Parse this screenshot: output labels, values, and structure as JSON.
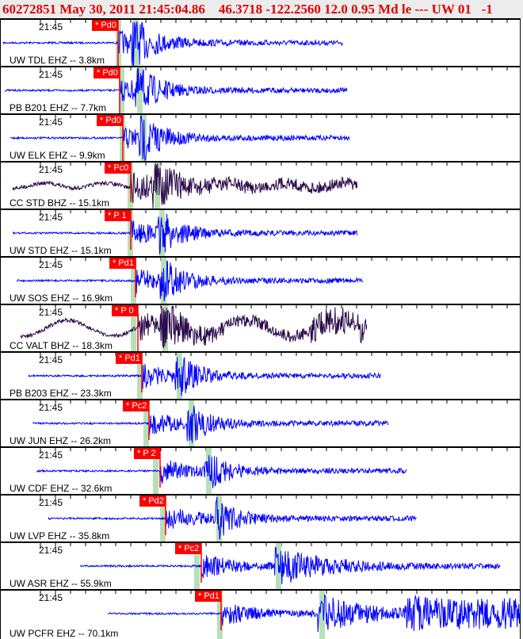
{
  "header": {
    "title": "60272851 May 30, 2011 21:45:04.86    46.3718 -122.2560 12.0 0.95 Md le --- UW 01   -1"
  },
  "colors": {
    "header_text": "#e00000",
    "trace_short_period": "#0000ff",
    "trace_broadband": "#2a0a4a",
    "pick": "#ff0000",
    "window": "#b8e0b8"
  },
  "time_label": "21:45",
  "traces": [
    {
      "station": "UW TDL EHZ -- 3.8km",
      "pick": "* Pd0",
      "type": "sp"
    },
    {
      "station": "PB B201 EHZ -- 7.7km",
      "pick": "* Pd0",
      "type": "sp"
    },
    {
      "station": "UW ELK EHZ -- 9.9km",
      "pick": "* Pd0",
      "type": "sp"
    },
    {
      "station": "CC STD BHZ -- 15.1km",
      "pick": "* Pc0",
      "type": "bb"
    },
    {
      "station": "UW STD EHZ -- 15.1km",
      "pick": "* P 1",
      "type": "sp"
    },
    {
      "station": "UW SOS EHZ -- 16.9km",
      "pick": "* Pd1",
      "type": "sp"
    },
    {
      "station": "CC VALT BHZ -- 18.3km",
      "pick": "* P 0",
      "type": "bb"
    },
    {
      "station": "PB B203 EHZ -- 23.3km",
      "pick": "* Pd1",
      "type": "sp"
    },
    {
      "station": "UW JUN EHZ -- 26.2km",
      "pick": "* Pc2",
      "type": "sp"
    },
    {
      "station": "UW CDF EHZ -- 32.6km",
      "pick": "* P 2",
      "type": "sp"
    },
    {
      "station": "UW LVP EHZ -- 35.8km",
      "pick": "* Pd2",
      "type": "sp"
    },
    {
      "station": "UW ASR EHZ -- 55.9km",
      "pick": "* Pc2",
      "type": "sp"
    },
    {
      "station": "UW PCFR EHZ -- 70.1km",
      "pick": "* Pd1",
      "type": "sp"
    }
  ]
}
